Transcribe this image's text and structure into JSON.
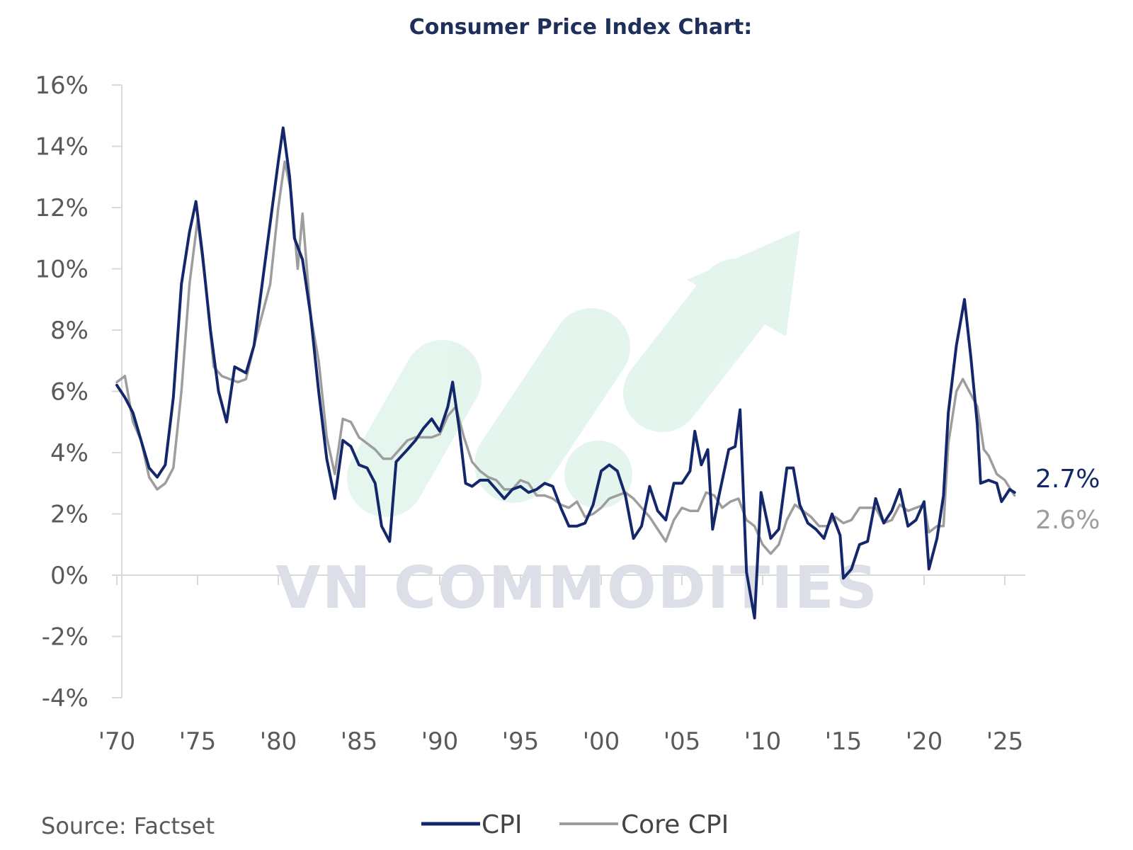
{
  "chart_data": {
    "type": "line",
    "title": "Consumer Price Index Chart:",
    "xlabel": "",
    "ylabel": "",
    "xlim": [
      1970,
      2026.5
    ],
    "ylim": [
      -4,
      16
    ],
    "grid": false,
    "legend_position": "bottom",
    "x_ticks": [
      1970,
      1975,
      1980,
      1985,
      1990,
      1995,
      2000,
      2005,
      2010,
      2015,
      2020,
      2025
    ],
    "x_tick_labels": [
      "'70",
      "'75",
      "'80",
      "'85",
      "'90",
      "'95",
      "'00",
      "'05",
      "'10",
      "'15",
      "'20",
      "'25"
    ],
    "y_ticks": [
      -4,
      -2,
      0,
      2,
      4,
      6,
      8,
      10,
      12,
      14,
      16
    ],
    "y_tick_labels": [
      "-4%",
      "-2%",
      "0%",
      "2%",
      "4%",
      "6%",
      "8%",
      "10%",
      "12%",
      "14%",
      "16%"
    ],
    "series": [
      {
        "name": "CPI",
        "color": "#15276b",
        "end_label": "2.7%",
        "points": [
          [
            1970.0,
            6.2
          ],
          [
            1970.5,
            5.8
          ],
          [
            1971.0,
            5.3
          ],
          [
            1971.5,
            4.4
          ],
          [
            1972.0,
            3.5
          ],
          [
            1972.5,
            3.2
          ],
          [
            1973.0,
            3.6
          ],
          [
            1973.5,
            5.8
          ],
          [
            1974.0,
            9.5
          ],
          [
            1974.5,
            11.2
          ],
          [
            1974.9,
            12.2
          ],
          [
            1975.3,
            10.5
          ],
          [
            1975.8,
            8.0
          ],
          [
            1976.3,
            6.0
          ],
          [
            1976.8,
            5.0
          ],
          [
            1977.3,
            6.8
          ],
          [
            1978.0,
            6.6
          ],
          [
            1978.5,
            7.5
          ],
          [
            1979.0,
            9.5
          ],
          [
            1979.5,
            11.5
          ],
          [
            1980.0,
            13.5
          ],
          [
            1980.3,
            14.6
          ],
          [
            1980.7,
            13.0
          ],
          [
            1981.0,
            11.0
          ],
          [
            1981.5,
            10.3
          ],
          [
            1982.0,
            8.5
          ],
          [
            1982.5,
            6.0
          ],
          [
            1983.0,
            3.8
          ],
          [
            1983.5,
            2.5
          ],
          [
            1984.0,
            4.4
          ],
          [
            1984.5,
            4.2
          ],
          [
            1985.0,
            3.6
          ],
          [
            1985.5,
            3.5
          ],
          [
            1986.0,
            3.0
          ],
          [
            1986.4,
            1.6
          ],
          [
            1986.9,
            1.1
          ],
          [
            1987.3,
            3.7
          ],
          [
            1988.0,
            4.1
          ],
          [
            1988.5,
            4.4
          ],
          [
            1989.0,
            4.8
          ],
          [
            1989.5,
            5.1
          ],
          [
            1990.0,
            4.7
          ],
          [
            1990.5,
            5.5
          ],
          [
            1990.8,
            6.3
          ],
          [
            1991.2,
            4.8
          ],
          [
            1991.6,
            3.0
          ],
          [
            1992.0,
            2.9
          ],
          [
            1992.5,
            3.1
          ],
          [
            1993.0,
            3.1
          ],
          [
            1993.5,
            2.8
          ],
          [
            1994.0,
            2.5
          ],
          [
            1994.5,
            2.8
          ],
          [
            1995.0,
            2.9
          ],
          [
            1995.5,
            2.7
          ],
          [
            1996.0,
            2.8
          ],
          [
            1996.5,
            3.0
          ],
          [
            1997.0,
            2.9
          ],
          [
            1997.5,
            2.2
          ],
          [
            1998.0,
            1.6
          ],
          [
            1998.5,
            1.6
          ],
          [
            1999.0,
            1.7
          ],
          [
            1999.5,
            2.3
          ],
          [
            2000.0,
            3.4
          ],
          [
            2000.5,
            3.6
          ],
          [
            2001.0,
            3.4
          ],
          [
            2001.5,
            2.6
          ],
          [
            2002.0,
            1.2
          ],
          [
            2002.5,
            1.6
          ],
          [
            2003.0,
            2.9
          ],
          [
            2003.5,
            2.1
          ],
          [
            2004.0,
            1.8
          ],
          [
            2004.5,
            3.0
          ],
          [
            2005.0,
            3.0
          ],
          [
            2005.5,
            3.4
          ],
          [
            2005.8,
            4.7
          ],
          [
            2006.2,
            3.6
          ],
          [
            2006.6,
            4.1
          ],
          [
            2006.9,
            1.5
          ],
          [
            2007.3,
            2.6
          ],
          [
            2007.9,
            4.1
          ],
          [
            2008.3,
            4.2
          ],
          [
            2008.6,
            5.4
          ],
          [
            2009.0,
            0.1
          ],
          [
            2009.5,
            -1.4
          ],
          [
            2009.9,
            2.7
          ],
          [
            2010.5,
            1.2
          ],
          [
            2011.0,
            1.5
          ],
          [
            2011.5,
            3.5
          ],
          [
            2011.9,
            3.5
          ],
          [
            2012.3,
            2.3
          ],
          [
            2012.8,
            1.7
          ],
          [
            2013.3,
            1.5
          ],
          [
            2013.8,
            1.2
          ],
          [
            2014.3,
            2.0
          ],
          [
            2014.8,
            1.3
          ],
          [
            2015.0,
            -0.1
          ],
          [
            2015.5,
            0.2
          ],
          [
            2016.0,
            1.0
          ],
          [
            2016.5,
            1.1
          ],
          [
            2017.0,
            2.5
          ],
          [
            2017.5,
            1.7
          ],
          [
            2018.0,
            2.1
          ],
          [
            2018.5,
            2.8
          ],
          [
            2019.0,
            1.6
          ],
          [
            2019.5,
            1.8
          ],
          [
            2020.0,
            2.4
          ],
          [
            2020.3,
            0.2
          ],
          [
            2020.8,
            1.2
          ],
          [
            2021.2,
            2.6
          ],
          [
            2021.5,
            5.3
          ],
          [
            2022.0,
            7.5
          ],
          [
            2022.5,
            9.0
          ],
          [
            2022.9,
            7.1
          ],
          [
            2023.3,
            4.9
          ],
          [
            2023.5,
            3.0
          ],
          [
            2024.0,
            3.1
          ],
          [
            2024.5,
            3.0
          ],
          [
            2024.8,
            2.4
          ],
          [
            2025.3,
            2.8
          ],
          [
            2025.6,
            2.7
          ]
        ]
      },
      {
        "name": "Core CPI",
        "color": "#9d9d9d",
        "end_label": "2.6%",
        "points": [
          [
            1970.0,
            6.3
          ],
          [
            1970.5,
            6.5
          ],
          [
            1971.0,
            5.0
          ],
          [
            1971.5,
            4.4
          ],
          [
            1972.0,
            3.2
          ],
          [
            1972.5,
            2.8
          ],
          [
            1973.0,
            3.0
          ],
          [
            1973.5,
            3.5
          ],
          [
            1974.0,
            6.0
          ],
          [
            1974.5,
            9.5
          ],
          [
            1975.0,
            11.6
          ],
          [
            1975.5,
            9.5
          ],
          [
            1976.0,
            6.8
          ],
          [
            1976.5,
            6.5
          ],
          [
            1977.0,
            6.4
          ],
          [
            1977.5,
            6.3
          ],
          [
            1978.0,
            6.4
          ],
          [
            1978.5,
            7.5
          ],
          [
            1979.0,
            8.5
          ],
          [
            1979.5,
            9.5
          ],
          [
            1980.0,
            12.0
          ],
          [
            1980.4,
            13.5
          ],
          [
            1980.8,
            12.5
          ],
          [
            1981.2,
            10.0
          ],
          [
            1981.5,
            11.8
          ],
          [
            1982.0,
            8.5
          ],
          [
            1982.5,
            7.0
          ],
          [
            1983.0,
            4.5
          ],
          [
            1983.5,
            3.3
          ],
          [
            1984.0,
            5.1
          ],
          [
            1984.5,
            5.0
          ],
          [
            1985.0,
            4.5
          ],
          [
            1985.5,
            4.3
          ],
          [
            1986.0,
            4.1
          ],
          [
            1986.5,
            3.8
          ],
          [
            1987.0,
            3.8
          ],
          [
            1987.5,
            4.1
          ],
          [
            1988.0,
            4.4
          ],
          [
            1988.5,
            4.5
          ],
          [
            1989.0,
            4.5
          ],
          [
            1989.5,
            4.5
          ],
          [
            1990.0,
            4.6
          ],
          [
            1990.5,
            5.2
          ],
          [
            1991.0,
            5.5
          ],
          [
            1991.5,
            4.5
          ],
          [
            1992.0,
            3.7
          ],
          [
            1992.5,
            3.4
          ],
          [
            1993.0,
            3.2
          ],
          [
            1993.5,
            3.1
          ],
          [
            1994.0,
            2.8
          ],
          [
            1994.5,
            2.8
          ],
          [
            1995.0,
            3.1
          ],
          [
            1995.5,
            3.0
          ],
          [
            1996.0,
            2.6
          ],
          [
            1996.5,
            2.6
          ],
          [
            1997.0,
            2.5
          ],
          [
            1997.5,
            2.3
          ],
          [
            1998.0,
            2.2
          ],
          [
            1998.5,
            2.4
          ],
          [
            1999.0,
            1.9
          ],
          [
            1999.5,
            2.0
          ],
          [
            2000.0,
            2.2
          ],
          [
            2000.5,
            2.5
          ],
          [
            2001.0,
            2.6
          ],
          [
            2001.5,
            2.7
          ],
          [
            2002.0,
            2.5
          ],
          [
            2002.5,
            2.2
          ],
          [
            2003.0,
            1.9
          ],
          [
            2003.5,
            1.5
          ],
          [
            2004.0,
            1.1
          ],
          [
            2004.5,
            1.8
          ],
          [
            2005.0,
            2.2
          ],
          [
            2005.5,
            2.1
          ],
          [
            2006.0,
            2.1
          ],
          [
            2006.5,
            2.7
          ],
          [
            2007.0,
            2.6
          ],
          [
            2007.5,
            2.2
          ],
          [
            2008.0,
            2.4
          ],
          [
            2008.5,
            2.5
          ],
          [
            2009.0,
            1.8
          ],
          [
            2009.5,
            1.6
          ],
          [
            2010.0,
            1.0
          ],
          [
            2010.5,
            0.7
          ],
          [
            2011.0,
            1.0
          ],
          [
            2011.5,
            1.8
          ],
          [
            2012.0,
            2.3
          ],
          [
            2012.5,
            2.1
          ],
          [
            2013.0,
            1.9
          ],
          [
            2013.5,
            1.6
          ],
          [
            2014.0,
            1.6
          ],
          [
            2014.5,
            1.9
          ],
          [
            2015.0,
            1.7
          ],
          [
            2015.5,
            1.8
          ],
          [
            2016.0,
            2.2
          ],
          [
            2016.5,
            2.2
          ],
          [
            2017.0,
            2.2
          ],
          [
            2017.5,
            1.7
          ],
          [
            2018.0,
            1.8
          ],
          [
            2018.5,
            2.3
          ],
          [
            2019.0,
            2.1
          ],
          [
            2019.5,
            2.2
          ],
          [
            2020.0,
            2.3
          ],
          [
            2020.3,
            1.4
          ],
          [
            2020.8,
            1.6
          ],
          [
            2021.2,
            1.6
          ],
          [
            2021.5,
            4.3
          ],
          [
            2022.0,
            6.0
          ],
          [
            2022.4,
            6.4
          ],
          [
            2022.8,
            6.0
          ],
          [
            2023.3,
            5.5
          ],
          [
            2023.7,
            4.1
          ],
          [
            2024.0,
            3.9
          ],
          [
            2024.5,
            3.3
          ],
          [
            2025.0,
            3.1
          ],
          [
            2025.6,
            2.6
          ]
        ]
      }
    ],
    "annotations": [
      "Source: Factset",
      "VN COMMODITIES"
    ]
  }
}
